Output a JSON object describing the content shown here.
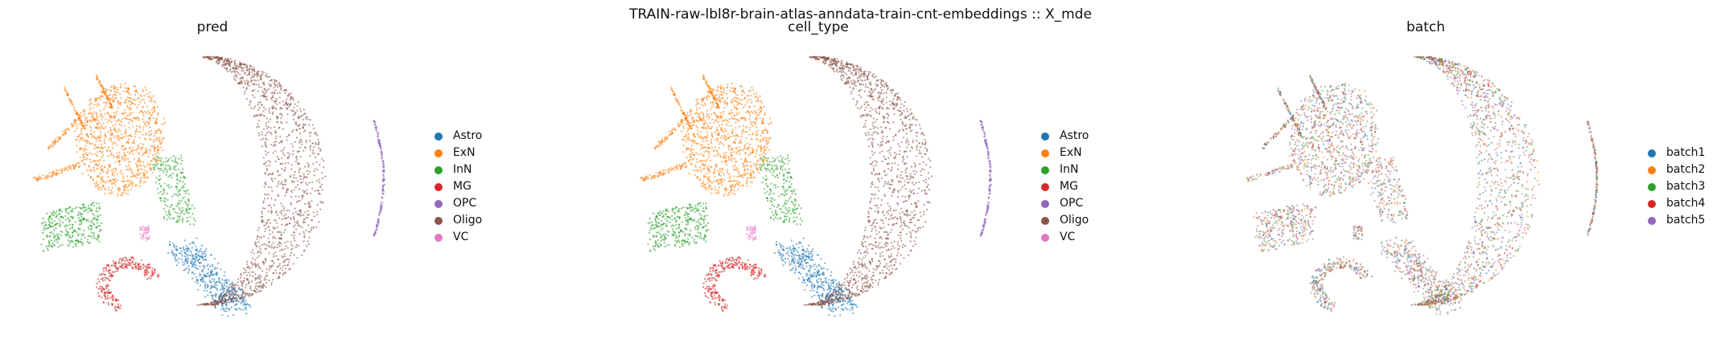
{
  "figure": {
    "suptitle": "TRAIN-raw-lbl8r-brain-atlas-anndata-train-cnt-embeddings :: X_mde"
  },
  "colors": {
    "Astro": "#1f77b4",
    "ExN": "#ff7f0e",
    "InN": "#2ca02c",
    "MG": "#d62728",
    "OPC": "#9467bd",
    "Oligo": "#8c564b",
    "VC": "#e377c2",
    "batch1": "#1f77b4",
    "batch2": "#ff7f0e",
    "batch3": "#2ca02c",
    "batch4": "#d62728",
    "batch5": "#9467bd"
  },
  "chart_data": [
    {
      "type": "scatter",
      "title": "pred",
      "xlabel": "",
      "ylabel": "",
      "grid": false,
      "axes_visible": false,
      "legend_position": "right",
      "legend": [
        "Astro",
        "ExN",
        "InN",
        "MG",
        "OPC",
        "Oligo",
        "VC"
      ]
    },
    {
      "type": "scatter",
      "title": "cell_type",
      "xlabel": "",
      "ylabel": "",
      "grid": false,
      "axes_visible": false,
      "legend_position": "right",
      "legend": [
        "Astro",
        "ExN",
        "InN",
        "MG",
        "OPC",
        "Oligo",
        "VC"
      ]
    },
    {
      "type": "scatter",
      "title": "batch",
      "xlabel": "",
      "ylabel": "",
      "grid": false,
      "axes_visible": false,
      "legend_position": "right",
      "legend": [
        "batch1",
        "batch2",
        "batch3",
        "batch4",
        "batch5"
      ]
    }
  ]
}
